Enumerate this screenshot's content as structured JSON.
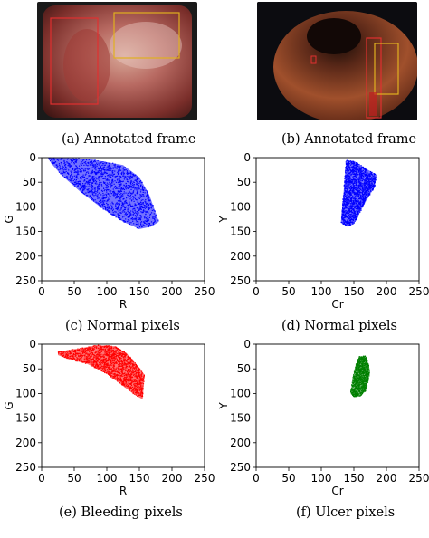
{
  "frames": [
    {
      "id": "a",
      "caption": "(a) Annotated frame"
    },
    {
      "id": "b",
      "caption": "(b) Annotated frame"
    }
  ],
  "colors": {
    "normal": "#0000ff",
    "bleeding": "#ff0000",
    "ulcer": "#008000",
    "annotation_red": "#e03030",
    "annotation_yellow": "#e0b020"
  },
  "chart_data": [
    {
      "type": "scatter",
      "id": "c",
      "caption": "(c) Normal pixels",
      "xlabel": "R",
      "ylabel": "G",
      "xlim": [
        0,
        250
      ],
      "ylim": [
        0,
        250
      ],
      "y_inverted": true,
      "xticks": [
        0,
        50,
        100,
        150,
        200,
        250
      ],
      "yticks": [
        0,
        50,
        100,
        150,
        200,
        250
      ],
      "color": "#0000ff",
      "region_outline": [
        [
          10,
          0
        ],
        [
          70,
          2
        ],
        [
          125,
          15
        ],
        [
          150,
          40
        ],
        [
          165,
          75
        ],
        [
          180,
          130
        ],
        [
          168,
          140
        ],
        [
          150,
          145
        ],
        [
          125,
          130
        ],
        [
          95,
          105
        ],
        [
          60,
          70
        ],
        [
          30,
          35
        ],
        [
          15,
          12
        ]
      ]
    },
    {
      "type": "scatter",
      "id": "d",
      "caption": "(d) Normal pixels",
      "xlabel": "Cr",
      "ylabel": "Y",
      "xlim": [
        0,
        250
      ],
      "ylim": [
        0,
        250
      ],
      "y_inverted": true,
      "xticks": [
        0,
        50,
        100,
        150,
        200,
        250
      ],
      "yticks": [
        0,
        50,
        100,
        150,
        200,
        250
      ],
      "color": "#0000ff",
      "region_outline": [
        [
          138,
          5
        ],
        [
          152,
          8
        ],
        [
          168,
          22
        ],
        [
          185,
          35
        ],
        [
          182,
          60
        ],
        [
          170,
          85
        ],
        [
          160,
          110
        ],
        [
          150,
          135
        ],
        [
          140,
          140
        ],
        [
          130,
          132
        ],
        [
          133,
          90
        ],
        [
          136,
          40
        ]
      ]
    },
    {
      "type": "scatter",
      "id": "e",
      "caption": "(e) Bleeding pixels",
      "xlabel": "R",
      "ylabel": "G",
      "xlim": [
        0,
        250
      ],
      "ylim": [
        0,
        250
      ],
      "y_inverted": true,
      "xticks": [
        0,
        50,
        100,
        150,
        200,
        250
      ],
      "yticks": [
        0,
        50,
        100,
        150,
        200,
        250
      ],
      "color": "#ff0000",
      "region_outline": [
        [
          25,
          15
        ],
        [
          60,
          8
        ],
        [
          85,
          2
        ],
        [
          112,
          4
        ],
        [
          130,
          18
        ],
        [
          145,
          40
        ],
        [
          158,
          62
        ],
        [
          155,
          112
        ],
        [
          142,
          102
        ],
        [
          125,
          85
        ],
        [
          100,
          60
        ],
        [
          70,
          40
        ],
        [
          40,
          30
        ],
        [
          25,
          22
        ]
      ]
    },
    {
      "type": "scatter",
      "id": "f",
      "caption": "(f) Ulcer pixels",
      "xlabel": "Cr",
      "ylabel": "Y",
      "xlim": [
        0,
        250
      ],
      "ylim": [
        0,
        250
      ],
      "y_inverted": true,
      "xticks": [
        0,
        50,
        100,
        150,
        200,
        250
      ],
      "yticks": [
        0,
        50,
        100,
        150,
        200,
        250
      ],
      "color": "#008000",
      "region_outline": [
        [
          158,
          25
        ],
        [
          168,
          24
        ],
        [
          172,
          38
        ],
        [
          175,
          55
        ],
        [
          172,
          75
        ],
        [
          168,
          95
        ],
        [
          160,
          105
        ],
        [
          150,
          108
        ],
        [
          145,
          98
        ],
        [
          148,
          70
        ],
        [
          152,
          45
        ]
      ]
    }
  ]
}
